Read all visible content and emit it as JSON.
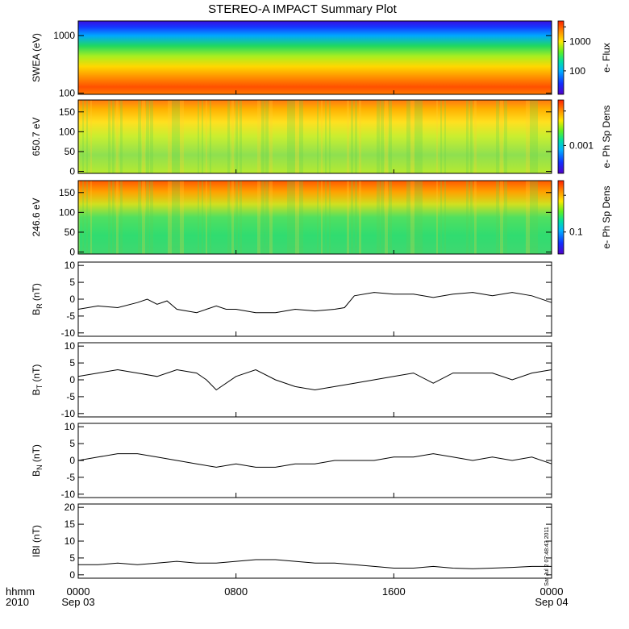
{
  "chart_data": {
    "type": "line",
    "title": "STEREO-A IMPACT Summary Plot",
    "time_axis": {
      "row1_label": "hhmm",
      "row2_label": "2010",
      "range_hours": [
        0,
        24
      ],
      "ticks": [
        {
          "hour": 0,
          "label": "0000",
          "sub": "Sep 03"
        },
        {
          "hour": 8,
          "label": "0800",
          "sub": ""
        },
        {
          "hour": 16,
          "label": "1600",
          "sub": ""
        },
        {
          "hour": 24,
          "label": "0000",
          "sub": "Sep 04"
        }
      ]
    },
    "timestamp": "Sat Jul  2 07:48:43 2011",
    "spectrograms": [
      {
        "ylabel": "SWEA (eV)",
        "ylim": [
          95,
          1800
        ],
        "yscale": "log",
        "yticks": [
          {
            "v": 100,
            "label": "100"
          },
          {
            "v": 1000,
            "label": "1000"
          }
        ],
        "colorbar_label": "e- Flux",
        "colorbar_ticks": [
          {
            "frac": 0.32,
            "label": "100"
          },
          {
            "frac": 0.72,
            "label": "1000"
          },
          {
            "frac": 0.92,
            "label": ""
          }
        ]
      },
      {
        "ylabel": "650.7 eV",
        "ylim": [
          -5,
          180
        ],
        "yscale": "linear",
        "yticks": [
          {
            "v": 0,
            "label": "0"
          },
          {
            "v": 50,
            "label": "50"
          },
          {
            "v": 100,
            "label": "100"
          },
          {
            "v": 150,
            "label": "150"
          }
        ],
        "colorbar_label": "e- Ph Sp Dens",
        "colorbar_ticks": [
          {
            "frac": 0.38,
            "label": "0.001"
          },
          {
            "frac": 0.85,
            "label": ""
          }
        ]
      },
      {
        "ylabel": "246.6 eV",
        "ylim": [
          -5,
          180
        ],
        "yscale": "linear",
        "yticks": [
          {
            "v": 0,
            "label": "0"
          },
          {
            "v": 50,
            "label": "50"
          },
          {
            "v": 100,
            "label": "100"
          },
          {
            "v": 150,
            "label": "150"
          }
        ],
        "colorbar_label": "e- Ph Sp Dens",
        "colorbar_ticks": [
          {
            "frac": 0.3,
            "label": "0.1"
          },
          {
            "frac": 0.8,
            "label": ""
          }
        ]
      }
    ],
    "magnetic": [
      {
        "ylabel": "B",
        "subscript": "R",
        "unit": "(nT)",
        "ylim": [
          -11,
          11
        ],
        "yticks": [
          -10,
          -5,
          0,
          5,
          10
        ],
        "x": [
          0,
          1,
          2,
          3,
          3.5,
          4,
          4.5,
          5,
          6,
          6.5,
          7,
          7.5,
          8,
          9,
          10,
          11,
          12,
          13,
          13.5,
          14,
          15,
          16,
          17,
          18,
          19,
          20,
          21,
          22,
          23,
          24
        ],
        "y": [
          -3,
          -2,
          -2.5,
          -1,
          0,
          -1.5,
          -0.5,
          -3,
          -4,
          -3,
          -2,
          -3,
          -3,
          -4,
          -4,
          -3,
          -3.5,
          -3,
          -2.5,
          1,
          2,
          1.5,
          1.5,
          0.5,
          1.5,
          2,
          1,
          2,
          1,
          -1
        ]
      },
      {
        "ylabel": "B",
        "subscript": "T",
        "unit": "(nT)",
        "ylim": [
          -11,
          11
        ],
        "yticks": [
          -10,
          -5,
          0,
          5,
          10
        ],
        "x": [
          0,
          1,
          2,
          3,
          4,
          5,
          6,
          6.5,
          7,
          8,
          9,
          10,
          11,
          12,
          13,
          14,
          15,
          16,
          17,
          18,
          19,
          20,
          21,
          22,
          23,
          24
        ],
        "y": [
          1,
          2,
          3,
          2,
          1,
          3,
          2,
          0,
          -3,
          1,
          3,
          0,
          -2,
          -3,
          -2,
          -1,
          0,
          1,
          2,
          -1,
          2,
          2,
          2,
          0,
          2,
          3
        ]
      },
      {
        "ylabel": "B",
        "subscript": "N",
        "unit": "(nT)",
        "ylim": [
          -11,
          11
        ],
        "yticks": [
          -10,
          -5,
          0,
          5,
          10
        ],
        "x": [
          0,
          1,
          2,
          3,
          4,
          5,
          6,
          7,
          8,
          9,
          10,
          11,
          12,
          13,
          14,
          15,
          16,
          17,
          18,
          19,
          20,
          21,
          22,
          23,
          24
        ],
        "y": [
          0,
          1,
          2,
          2,
          1,
          0,
          -1,
          -2,
          -1,
          -2,
          -2,
          -1,
          -1,
          0,
          0,
          0,
          1,
          1,
          2,
          1,
          0,
          1,
          0,
          1,
          -1
        ]
      },
      {
        "ylabel": "IBI",
        "subscript": "",
        "unit": "(nT)",
        "ylim": [
          -1,
          21
        ],
        "yticks": [
          0,
          5,
          10,
          15,
          20
        ],
        "x": [
          0,
          1,
          2,
          3,
          4,
          5,
          6,
          7,
          8,
          9,
          10,
          11,
          12,
          13,
          14,
          15,
          16,
          17,
          18,
          19,
          20,
          21,
          22,
          23,
          24
        ],
        "y": [
          3,
          3,
          3.5,
          3,
          3.5,
          4,
          3.5,
          3.5,
          4,
          4.5,
          4.5,
          4,
          3.5,
          3.5,
          3,
          2.5,
          2,
          2,
          2.5,
          2,
          1.8,
          2,
          2.2,
          2.5,
          2.5
        ]
      }
    ]
  }
}
